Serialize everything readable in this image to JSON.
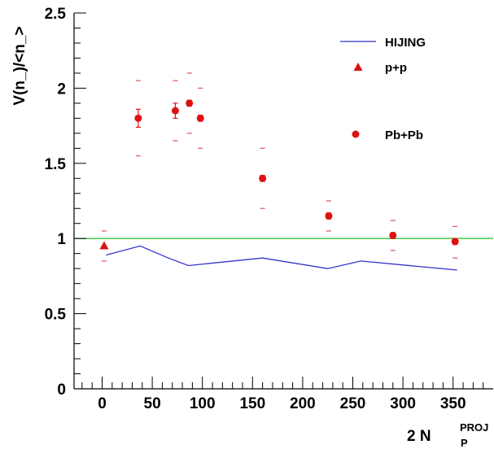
{
  "chart_data": {
    "type": "scatter",
    "title": "",
    "ylabel": "V(n_)/<n_>",
    "xlabel": {
      "main": "2 N",
      "subscript": "P",
      "superscript": "PROJ"
    },
    "xlim": [
      -28,
      390
    ],
    "ylim": [
      0,
      2.5
    ],
    "xticks": [
      0,
      50,
      100,
      150,
      200,
      250,
      300,
      350
    ],
    "yticks": [
      0,
      0.5,
      1,
      1.5,
      2,
      2.5
    ],
    "ytick_labels": [
      "0",
      "0.5",
      "1",
      "1.5",
      "2",
      "2.5"
    ],
    "grid": false,
    "legend_position": "top-right",
    "reference_line": {
      "y": 1,
      "color": "#33cc33"
    },
    "series": [
      {
        "name": "HIJING",
        "kind": "line",
        "color": "#3333cc",
        "x": [
          4,
          38,
          66,
          86,
          160,
          225,
          258,
          354
        ],
        "y": [
          0.89,
          0.95,
          0.87,
          0.82,
          0.87,
          0.8,
          0.85,
          0.79
        ]
      },
      {
        "name": "p+p",
        "kind": "marker",
        "marker": "triangle",
        "color": "#dd1111",
        "points": [
          {
            "x": 2,
            "y": 0.95,
            "err_lo": 0.85,
            "err_hi": 1.05
          },
          {
            "x": 36,
            "y": null,
            "err_lo": 1.55,
            "err_hi": 2.05
          },
          {
            "x": 73,
            "y": null,
            "err_lo": 1.65,
            "err_hi": 2.05
          },
          {
            "x": 87,
            "y": null,
            "err_lo": 1.7,
            "err_hi": 2.1
          },
          {
            "x": 98,
            "y": null,
            "err_lo": 1.6,
            "err_hi": 2.0
          },
          {
            "x": 160,
            "y": null,
            "err_lo": 1.2,
            "err_hi": 1.6
          },
          {
            "x": 226,
            "y": null,
            "err_lo": 1.05,
            "err_hi": 1.25
          },
          {
            "x": 290,
            "y": null,
            "err_lo": 0.92,
            "err_hi": 1.12
          },
          {
            "x": 352,
            "y": null,
            "err_lo": 0.87,
            "err_hi": 1.08
          }
        ]
      },
      {
        "name": "Pb+Pb",
        "kind": "marker",
        "marker": "circle",
        "color": "#dd1111",
        "points": [
          {
            "x": 36,
            "y": 1.8,
            "err": 0.06
          },
          {
            "x": 73,
            "y": 1.85,
            "err": 0.05
          },
          {
            "x": 87,
            "y": 1.9,
            "err": 0.02
          },
          {
            "x": 98,
            "y": 1.8,
            "err": 0.02
          },
          {
            "x": 160,
            "y": 1.4,
            "err": 0.02
          },
          {
            "x": 226,
            "y": 1.15,
            "err": 0.02
          },
          {
            "x": 290,
            "y": 1.02,
            "err": 0.02
          },
          {
            "x": 352,
            "y": 0.98,
            "err": 0.02
          }
        ]
      }
    ]
  }
}
